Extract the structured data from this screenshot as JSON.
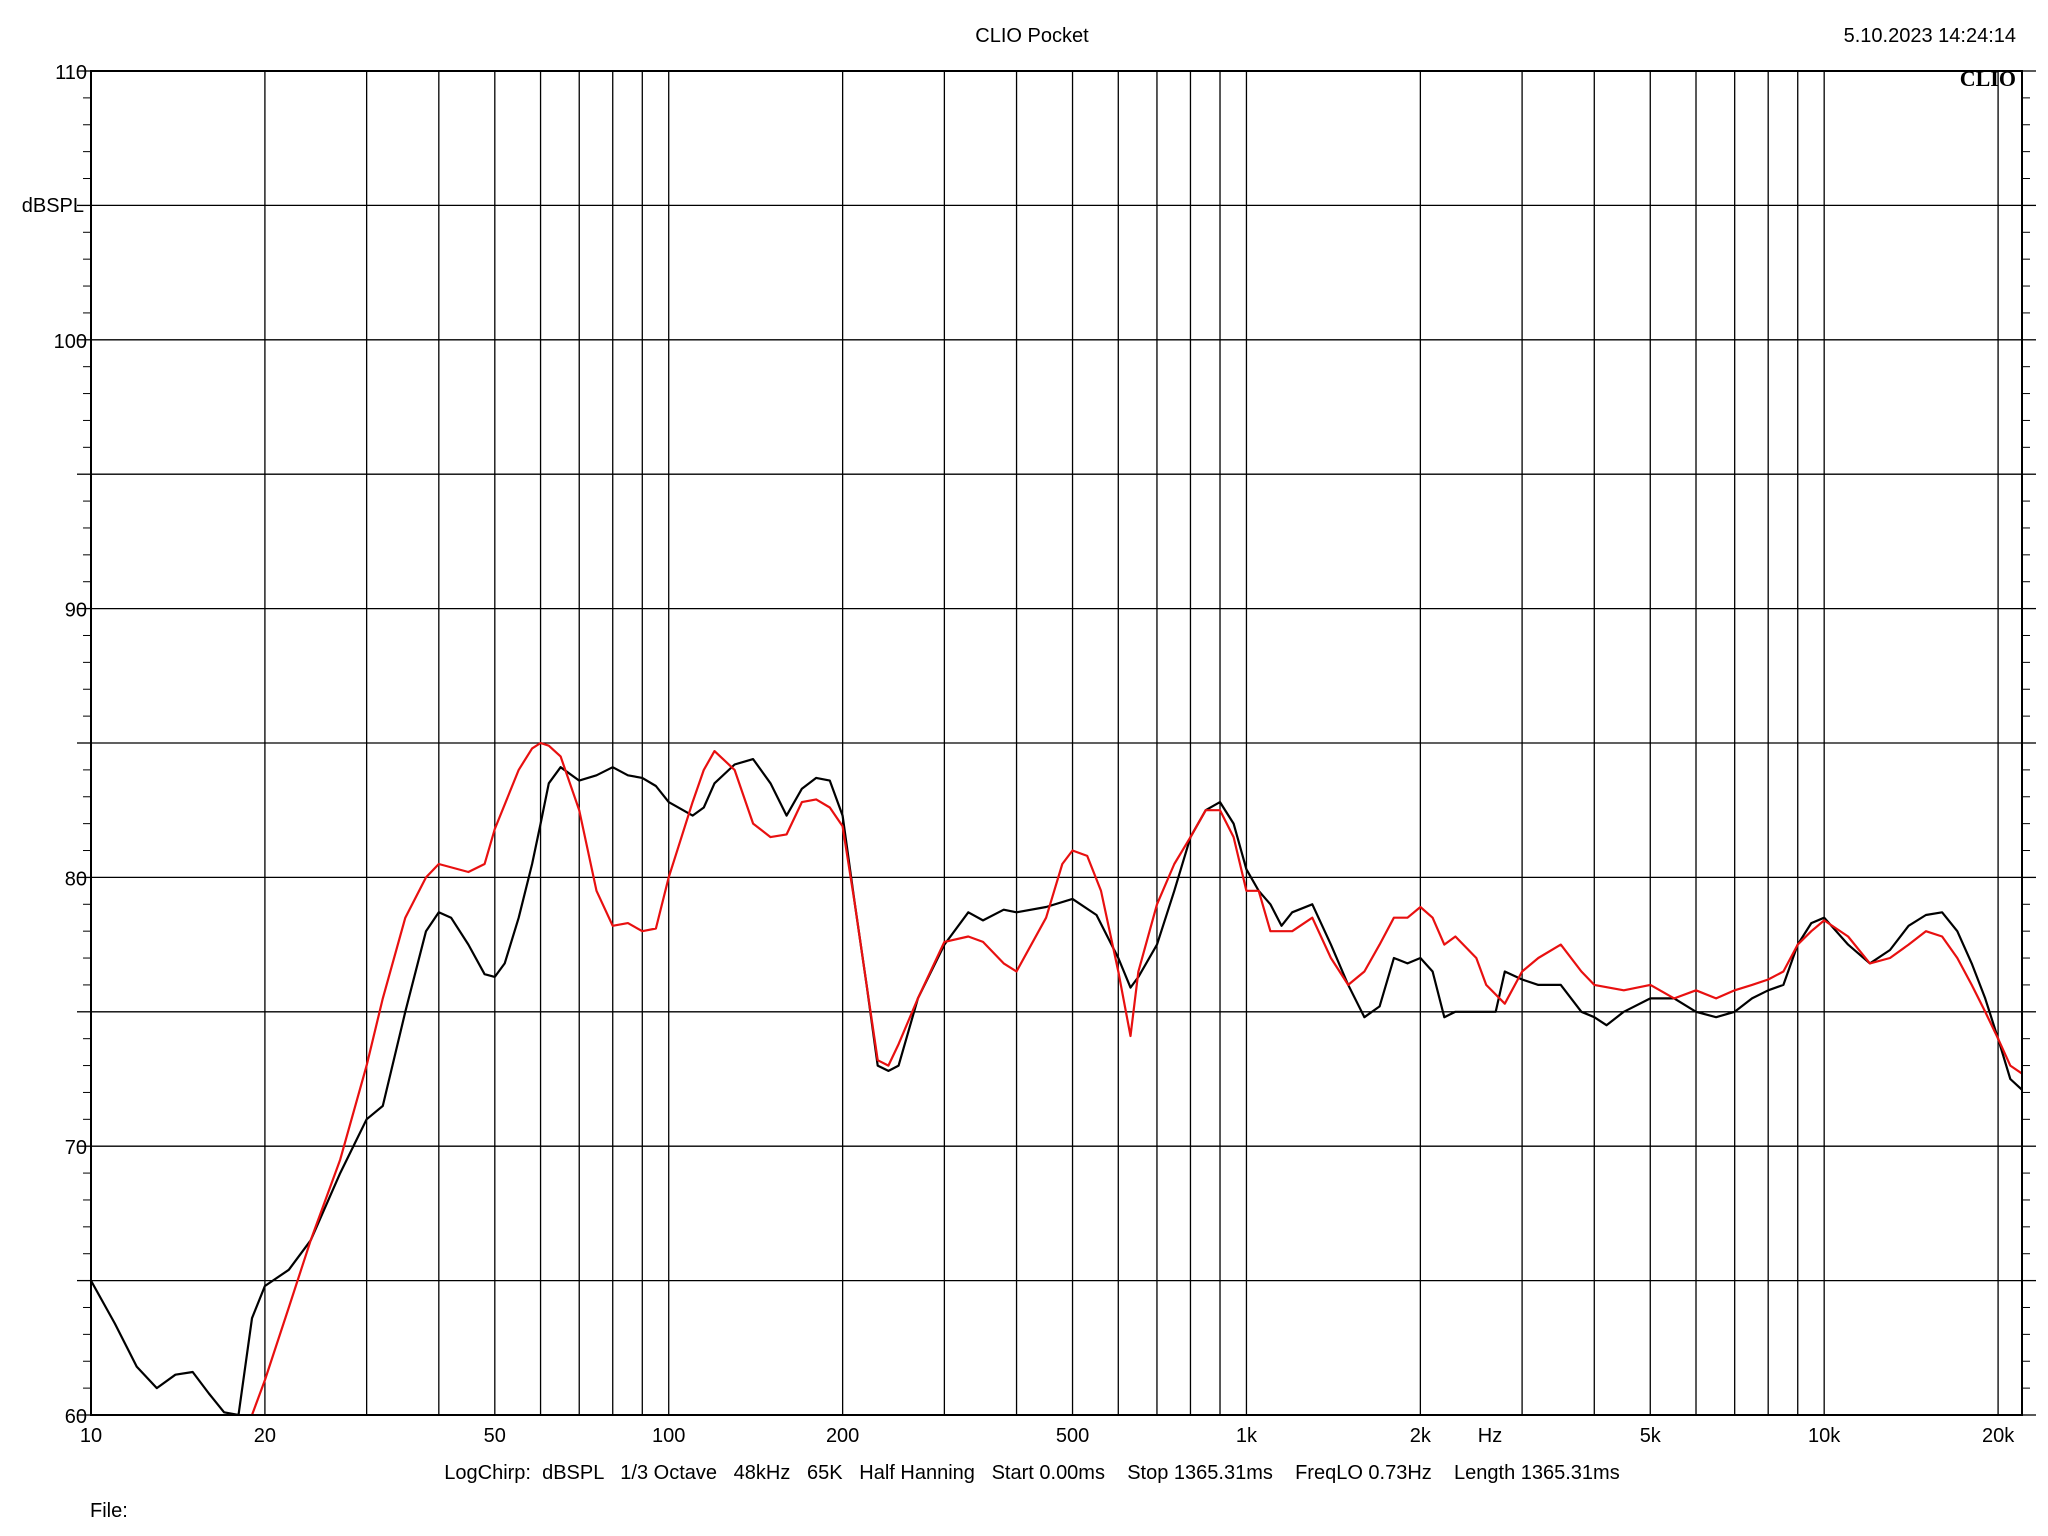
{
  "header": {
    "title": "CLIO Pocket",
    "timestamp": "5.10.2023 14:24:14",
    "logo": "CLIO"
  },
  "footer": {
    "settings": "LogChirp:  dBSPL   1/3 Octave   48kHz   65K   Half Hanning   Start 0.00ms    Stop 1365.31ms    FreqLO 0.73Hz    Length 1365.31ms",
    "file_label": "File:"
  },
  "colors": {
    "black_trace": "#000000",
    "red_trace": "#e81010",
    "grid": "#000000"
  },
  "chart_data": {
    "type": "line",
    "title": "CLIO Pocket",
    "xlabel": "Hz",
    "ylabel": "dBSPL",
    "x_scale": "log",
    "xlim": [
      10,
      22000
    ],
    "ylim": [
      60,
      110
    ],
    "x_ticks": [
      {
        "value": 10,
        "label": "10"
      },
      {
        "value": 20,
        "label": "20"
      },
      {
        "value": 50,
        "label": "50"
      },
      {
        "value": 100,
        "label": "100"
      },
      {
        "value": 200,
        "label": "200"
      },
      {
        "value": 500,
        "label": "500"
      },
      {
        "value": 1000,
        "label": "1k"
      },
      {
        "value": 2000,
        "label": "2k"
      },
      {
        "value": 5000,
        "label": "5k"
      },
      {
        "value": 10000,
        "label": "10k"
      },
      {
        "value": 20000,
        "label": "20k"
      }
    ],
    "y_ticks": [
      {
        "value": 60,
        "label": "60"
      },
      {
        "value": 70,
        "label": "70"
      },
      {
        "value": 80,
        "label": "80"
      },
      {
        "value": 90,
        "label": "90"
      },
      {
        "value": 100,
        "label": "100"
      },
      {
        "value": 110,
        "label": "110"
      }
    ],
    "grid": true,
    "series": [
      {
        "color": "#000000",
        "points": [
          [
            10,
            65.0
          ],
          [
            11,
            63.4
          ],
          [
            12,
            61.8
          ],
          [
            13,
            61.0
          ],
          [
            14,
            61.5
          ],
          [
            15,
            61.6
          ],
          [
            16,
            60.8
          ],
          [
            17,
            60.1
          ],
          [
            18,
            60.0
          ],
          [
            19,
            63.6
          ],
          [
            20,
            64.8
          ],
          [
            22,
            65.4
          ],
          [
            24,
            66.5
          ],
          [
            27,
            69.0
          ],
          [
            30,
            71.0
          ],
          [
            32,
            71.5
          ],
          [
            35,
            75.0
          ],
          [
            38,
            78.0
          ],
          [
            40,
            78.7
          ],
          [
            42,
            78.5
          ],
          [
            45,
            77.5
          ],
          [
            48,
            76.4
          ],
          [
            50,
            76.3
          ],
          [
            52,
            76.8
          ],
          [
            55,
            78.5
          ],
          [
            58,
            80.5
          ],
          [
            60,
            82.0
          ],
          [
            62,
            83.5
          ],
          [
            65,
            84.1
          ],
          [
            70,
            83.6
          ],
          [
            75,
            83.8
          ],
          [
            80,
            84.1
          ],
          [
            85,
            83.8
          ],
          [
            90,
            83.7
          ],
          [
            95,
            83.4
          ],
          [
            100,
            82.8
          ],
          [
            110,
            82.3
          ],
          [
            115,
            82.6
          ],
          [
            120,
            83.5
          ],
          [
            130,
            84.2
          ],
          [
            140,
            84.4
          ],
          [
            150,
            83.5
          ],
          [
            160,
            82.3
          ],
          [
            170,
            83.3
          ],
          [
            180,
            83.7
          ],
          [
            190,
            83.6
          ],
          [
            200,
            82.3
          ],
          [
            210,
            79.0
          ],
          [
            220,
            76.0
          ],
          [
            230,
            73.0
          ],
          [
            240,
            72.8
          ],
          [
            250,
            73.0
          ],
          [
            270,
            75.5
          ],
          [
            300,
            77.5
          ],
          [
            330,
            78.7
          ],
          [
            350,
            78.4
          ],
          [
            380,
            78.8
          ],
          [
            400,
            78.7
          ],
          [
            450,
            78.9
          ],
          [
            500,
            79.2
          ],
          [
            550,
            78.6
          ],
          [
            600,
            77.0
          ],
          [
            630,
            75.9
          ],
          [
            650,
            76.3
          ],
          [
            700,
            77.5
          ],
          [
            750,
            79.5
          ],
          [
            800,
            81.5
          ],
          [
            850,
            82.5
          ],
          [
            900,
            82.8
          ],
          [
            950,
            82.0
          ],
          [
            1000,
            80.3
          ],
          [
            1050,
            79.5
          ],
          [
            1100,
            79.0
          ],
          [
            1150,
            78.2
          ],
          [
            1200,
            78.7
          ],
          [
            1300,
            79.0
          ],
          [
            1400,
            77.5
          ],
          [
            1500,
            76.0
          ],
          [
            1600,
            74.8
          ],
          [
            1700,
            75.2
          ],
          [
            1800,
            77.0
          ],
          [
            1900,
            76.8
          ],
          [
            2000,
            77.0
          ],
          [
            2100,
            76.5
          ],
          [
            2200,
            74.8
          ],
          [
            2300,
            75.0
          ],
          [
            2500,
            75.0
          ],
          [
            2700,
            75.0
          ],
          [
            2800,
            76.5
          ],
          [
            3000,
            76.2
          ],
          [
            3200,
            76.0
          ],
          [
            3500,
            76.0
          ],
          [
            3800,
            75.0
          ],
          [
            4000,
            74.8
          ],
          [
            4200,
            74.5
          ],
          [
            4500,
            75.0
          ],
          [
            5000,
            75.5
          ],
          [
            5500,
            75.5
          ],
          [
            6000,
            75.0
          ],
          [
            6500,
            74.8
          ],
          [
            7000,
            75.0
          ],
          [
            7500,
            75.5
          ],
          [
            8000,
            75.8
          ],
          [
            8500,
            76.0
          ],
          [
            9000,
            77.5
          ],
          [
            9500,
            78.3
          ],
          [
            10000,
            78.5
          ],
          [
            11000,
            77.5
          ],
          [
            12000,
            76.8
          ],
          [
            13000,
            77.3
          ],
          [
            14000,
            78.2
          ],
          [
            15000,
            78.6
          ],
          [
            16000,
            78.7
          ],
          [
            17000,
            78.0
          ],
          [
            18000,
            76.8
          ],
          [
            19000,
            75.5
          ],
          [
            20000,
            74.0
          ],
          [
            21000,
            72.5
          ],
          [
            22000,
            72.1
          ]
        ]
      },
      {
        "color": "#e81010",
        "points": [
          [
            19,
            60.0
          ],
          [
            20,
            61.3
          ],
          [
            22,
            64.0
          ],
          [
            24,
            66.5
          ],
          [
            27,
            69.5
          ],
          [
            30,
            73.0
          ],
          [
            32,
            75.5
          ],
          [
            35,
            78.5
          ],
          [
            38,
            80.0
          ],
          [
            40,
            80.5
          ],
          [
            45,
            80.2
          ],
          [
            48,
            80.5
          ],
          [
            50,
            81.8
          ],
          [
            55,
            84.0
          ],
          [
            58,
            84.8
          ],
          [
            60,
            85.0
          ],
          [
            62,
            84.9
          ],
          [
            65,
            84.5
          ],
          [
            70,
            82.5
          ],
          [
            75,
            79.5
          ],
          [
            80,
            78.2
          ],
          [
            85,
            78.3
          ],
          [
            90,
            78.0
          ],
          [
            95,
            78.1
          ],
          [
            100,
            80.0
          ],
          [
            110,
            82.8
          ],
          [
            115,
            84.0
          ],
          [
            120,
            84.7
          ],
          [
            130,
            84.0
          ],
          [
            140,
            82.0
          ],
          [
            150,
            81.5
          ],
          [
            160,
            81.6
          ],
          [
            170,
            82.8
          ],
          [
            180,
            82.9
          ],
          [
            190,
            82.6
          ],
          [
            200,
            81.9
          ],
          [
            210,
            79.0
          ],
          [
            220,
            76.0
          ],
          [
            230,
            73.2
          ],
          [
            240,
            73.0
          ],
          [
            250,
            73.8
          ],
          [
            270,
            75.5
          ],
          [
            300,
            77.6
          ],
          [
            330,
            77.8
          ],
          [
            350,
            77.6
          ],
          [
            380,
            76.8
          ],
          [
            400,
            76.5
          ],
          [
            450,
            78.5
          ],
          [
            480,
            80.5
          ],
          [
            500,
            81.0
          ],
          [
            530,
            80.8
          ],
          [
            560,
            79.5
          ],
          [
            600,
            76.5
          ],
          [
            630,
            74.1
          ],
          [
            650,
            76.5
          ],
          [
            700,
            79.0
          ],
          [
            750,
            80.5
          ],
          [
            800,
            81.5
          ],
          [
            850,
            82.5
          ],
          [
            900,
            82.5
          ],
          [
            950,
            81.5
          ],
          [
            1000,
            79.5
          ],
          [
            1050,
            79.5
          ],
          [
            1100,
            78.0
          ],
          [
            1200,
            78.0
          ],
          [
            1300,
            78.5
          ],
          [
            1400,
            77.0
          ],
          [
            1500,
            76.0
          ],
          [
            1600,
            76.5
          ],
          [
            1700,
            77.5
          ],
          [
            1800,
            78.5
          ],
          [
            1900,
            78.5
          ],
          [
            2000,
            78.9
          ],
          [
            2100,
            78.5
          ],
          [
            2200,
            77.5
          ],
          [
            2300,
            77.8
          ],
          [
            2500,
            77.0
          ],
          [
            2600,
            76.0
          ],
          [
            2800,
            75.3
          ],
          [
            3000,
            76.5
          ],
          [
            3200,
            77.0
          ],
          [
            3500,
            77.5
          ],
          [
            3800,
            76.5
          ],
          [
            4000,
            76.0
          ],
          [
            4500,
            75.8
          ],
          [
            5000,
            76.0
          ],
          [
            5500,
            75.5
          ],
          [
            6000,
            75.8
          ],
          [
            6500,
            75.5
          ],
          [
            7000,
            75.8
          ],
          [
            7500,
            76.0
          ],
          [
            8000,
            76.2
          ],
          [
            8500,
            76.5
          ],
          [
            9000,
            77.5
          ],
          [
            9500,
            78.0
          ],
          [
            10000,
            78.4
          ],
          [
            11000,
            77.8
          ],
          [
            12000,
            76.8
          ],
          [
            13000,
            77.0
          ],
          [
            14000,
            77.5
          ],
          [
            15000,
            78.0
          ],
          [
            16000,
            77.8
          ],
          [
            17000,
            77.0
          ],
          [
            18000,
            76.0
          ],
          [
            19000,
            75.0
          ],
          [
            20000,
            74.0
          ],
          [
            21000,
            73.0
          ],
          [
            22000,
            72.7
          ]
        ]
      }
    ]
  }
}
